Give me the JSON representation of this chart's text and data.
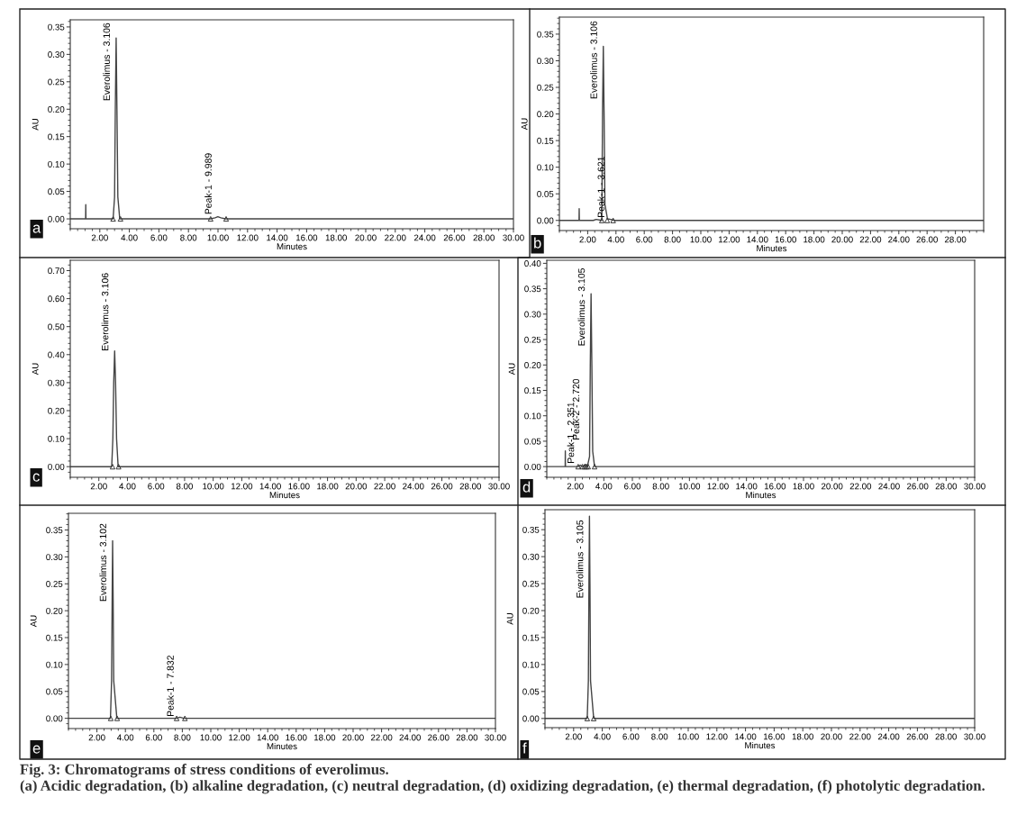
{
  "chart_data": [
    {
      "type": "line",
      "xlabel": "Minutes",
      "ylabel": "AU",
      "xlim": [
        0,
        30
      ],
      "ylim": [
        -0.018,
        0.363
      ],
      "xticks": [
        {
          "value": 2,
          "label": "2.00"
        },
        {
          "value": 4,
          "label": "4.00"
        },
        {
          "value": 6,
          "label": "6.00"
        },
        {
          "value": 8,
          "label": "8.00"
        },
        {
          "value": 10,
          "label": "10.00"
        },
        {
          "value": 12,
          "label": "12.00"
        },
        {
          "value": 14,
          "label": "14.00"
        },
        {
          "value": 16,
          "label": "16.00"
        },
        {
          "value": 18,
          "label": "18.00"
        },
        {
          "value": 20,
          "label": "20.00"
        },
        {
          "value": 22,
          "label": "22.00"
        },
        {
          "value": 24,
          "label": "24.00"
        },
        {
          "value": 26,
          "label": "26.00"
        },
        {
          "value": 28,
          "label": "28.00"
        },
        {
          "value": 30,
          "label": "30.00"
        }
      ],
      "yticks": [
        {
          "value": 0,
          "label": "0.00"
        },
        {
          "value": 0.05,
          "label": "0.05"
        },
        {
          "value": 0.1,
          "label": "0.10"
        },
        {
          "value": 0.15,
          "label": "0.15"
        },
        {
          "value": 0.2,
          "label": "0.20"
        },
        {
          "value": 0.25,
          "label": "0.25"
        },
        {
          "value": 0.3,
          "label": "0.30"
        },
        {
          "value": 0.35,
          "label": "0.35"
        }
      ],
      "series": [
        {
          "color": "#444444",
          "x": [
            0,
            1.04,
            1.05,
            1.06,
            2.9,
            3.0,
            3.05,
            3.106,
            3.16,
            3.22,
            3.35,
            9.5,
            9.8,
            9.989,
            10.2,
            10.5,
            30
          ],
          "values": [
            0,
            0,
            0.026,
            0,
            0,
            0.04,
            0.2,
            0.33,
            0.2,
            0.04,
            0,
            0,
            0.002,
            0.004,
            0.002,
            0,
            0
          ]
        },
        {
          "type": "scatter",
          "marker": "triangle",
          "color": "#333333",
          "x": [
            2.9,
            3.4,
            9.5,
            10.55
          ],
          "values": [
            0,
            0,
            0,
            0
          ]
        }
      ],
      "annotations": [
        "a",
        {
          "text": "Everolimus - 3.106",
          "x": 3.106,
          "y": 0.215
        },
        {
          "text": "Peak-1 - 9.989",
          "x": 9.989,
          "y": 0.008
        }
      ]
    },
    {
      "type": "line",
      "xlabel": "Minutes",
      "ylabel": "AU",
      "xlim": [
        0,
        30
      ],
      "ylim": [
        -0.019,
        0.382
      ],
      "xticks": [
        {
          "value": 2,
          "label": "2.00"
        },
        {
          "value": 4,
          "label": "4.00"
        },
        {
          "value": 6,
          "label": "6.00"
        },
        {
          "value": 8,
          "label": "8.00"
        },
        {
          "value": 10,
          "label": "10.00"
        },
        {
          "value": 12,
          "label": "12.00"
        },
        {
          "value": 14,
          "label": "14.00"
        },
        {
          "value": 16,
          "label": "16.00"
        },
        {
          "value": 18,
          "label": "18.00"
        },
        {
          "value": 20,
          "label": "20.00"
        },
        {
          "value": 22,
          "label": "22.00"
        },
        {
          "value": 24,
          "label": "24.00"
        },
        {
          "value": 26,
          "label": "26.00"
        },
        {
          "value": 28,
          "label": "28.00"
        }
      ],
      "yticks": [
        {
          "value": 0,
          "label": "0.00"
        },
        {
          "value": 0.05,
          "label": "0.05"
        },
        {
          "value": 0.1,
          "label": "0.10"
        },
        {
          "value": 0.15,
          "label": "0.15"
        },
        {
          "value": 0.2,
          "label": "0.20"
        },
        {
          "value": 0.25,
          "label": "0.25"
        },
        {
          "value": 0.3,
          "label": "0.30"
        },
        {
          "value": 0.35,
          "label": "0.35"
        }
      ],
      "series": [
        {
          "color": "#444444",
          "x": [
            0,
            1.39,
            1.4,
            1.41,
            2.4,
            2.6,
            3.0,
            3.05,
            3.106,
            3.16,
            3.22,
            3.4,
            3.621,
            3.9,
            30
          ],
          "values": [
            0,
            0,
            0.022,
            0,
            0,
            0.002,
            0,
            0.2,
            0.327,
            0.2,
            0.03,
            0.003,
            0.002,
            0,
            0
          ]
        },
        {
          "type": "scatter",
          "marker": "triangle",
          "color": "#333333",
          "x": [
            3.0,
            3.38,
            3.8
          ],
          "values": [
            0,
            0,
            0
          ]
        }
      ],
      "annotations": [
        "b",
        {
          "text": "Everolimus - 3.106",
          "x": 3.106,
          "y": 0.228
        },
        {
          "text": "Peak-1 - 3.621",
          "x": 3.621,
          "y": 0.005
        }
      ]
    },
    {
      "type": "line",
      "xlabel": "Minutes",
      "ylabel": "AU",
      "xlim": [
        0,
        30
      ],
      "ylim": [
        -0.038,
        0.737
      ],
      "xticks": [
        {
          "value": 2,
          "label": "2.00"
        },
        {
          "value": 4,
          "label": "4.00"
        },
        {
          "value": 6,
          "label": "6.00"
        },
        {
          "value": 8,
          "label": "8.00"
        },
        {
          "value": 10,
          "label": "10.00"
        },
        {
          "value": 12,
          "label": "12.00"
        },
        {
          "value": 14,
          "label": "14.00"
        },
        {
          "value": 16,
          "label": "16.00"
        },
        {
          "value": 18,
          "label": "18.00"
        },
        {
          "value": 20,
          "label": "20.00"
        },
        {
          "value": 22,
          "label": "22.00"
        },
        {
          "value": 24,
          "label": "24.00"
        },
        {
          "value": 26,
          "label": "26.00"
        },
        {
          "value": 28,
          "label": "28.00"
        },
        {
          "value": 30,
          "label": "30.00"
        }
      ],
      "yticks": [
        {
          "value": 0,
          "label": "0.00"
        },
        {
          "value": 0.1,
          "label": "0.10"
        },
        {
          "value": 0.2,
          "label": "0.20"
        },
        {
          "value": 0.3,
          "label": "0.30"
        },
        {
          "value": 0.4,
          "label": "0.40"
        },
        {
          "value": 0.5,
          "label": "0.50"
        },
        {
          "value": 0.6,
          "label": "0.60"
        },
        {
          "value": 0.7,
          "label": "0.70"
        }
      ],
      "series": [
        {
          "color": "#444444",
          "x": [
            0,
            2.9,
            2.98,
            3.04,
            3.106,
            3.17,
            3.24,
            3.35,
            30
          ],
          "values": [
            0,
            0,
            0.1,
            0.3,
            0.413,
            0.3,
            0.1,
            0,
            0
          ]
        },
        {
          "type": "scatter",
          "marker": "triangle",
          "color": "#333333",
          "x": [
            2.96,
            3.38
          ],
          "values": [
            0,
            0
          ]
        }
      ],
      "annotations": [
        "c",
        {
          "text": "Everolimus - 3.106",
          "x": 3.106,
          "y": 0.413
        }
      ]
    },
    {
      "type": "line",
      "xlabel": "Minutes",
      "ylabel": "AU",
      "xlim": [
        0,
        30
      ],
      "ylim": [
        -0.021,
        0.406
      ],
      "xticks": [
        {
          "value": 2,
          "label": "2.00"
        },
        {
          "value": 4,
          "label": "4.00"
        },
        {
          "value": 6,
          "label": "6.00"
        },
        {
          "value": 8,
          "label": "8.00"
        },
        {
          "value": 10,
          "label": "10.00"
        },
        {
          "value": 12,
          "label": "12.00"
        },
        {
          "value": 14,
          "label": "14.00"
        },
        {
          "value": 16,
          "label": "16.00"
        },
        {
          "value": 18,
          "label": "18.00"
        },
        {
          "value": 20,
          "label": "20.00"
        },
        {
          "value": 22,
          "label": "22.00"
        },
        {
          "value": 24,
          "label": "24.00"
        },
        {
          "value": 26,
          "label": "26.00"
        },
        {
          "value": 28,
          "label": "28.00"
        },
        {
          "value": 30,
          "label": "30.00"
        }
      ],
      "yticks": [
        {
          "value": 0,
          "label": "0.00"
        },
        {
          "value": 0.05,
          "label": "0.05"
        },
        {
          "value": 0.1,
          "label": "0.10"
        },
        {
          "value": 0.15,
          "label": "0.15"
        },
        {
          "value": 0.2,
          "label": "0.20"
        },
        {
          "value": 0.25,
          "label": "0.25"
        },
        {
          "value": 0.3,
          "label": "0.30"
        },
        {
          "value": 0.35,
          "label": "0.35"
        },
        {
          "value": 0.4,
          "label": "0.40"
        }
      ],
      "series": [
        {
          "color": "#444444",
          "x": [
            0,
            1.29,
            1.3,
            1.31,
            2.2,
            2.351,
            2.5,
            2.6,
            2.72,
            2.85,
            3.0,
            3.05,
            3.105,
            3.16,
            3.22,
            3.35,
            30
          ],
          "values": [
            0,
            0,
            0.031,
            0,
            0,
            0.003,
            0,
            0.001,
            0.004,
            0.001,
            0.02,
            0.2,
            0.34,
            0.2,
            0.03,
            0,
            0
          ]
        },
        {
          "type": "scatter",
          "marker": "triangle",
          "color": "#333333",
          "x": [
            2.2,
            2.5,
            2.65,
            2.78,
            2.9,
            3.35
          ],
          "values": [
            0,
            0,
            0,
            0,
            0,
            0
          ]
        }
      ],
      "annotations": [
        "d",
        {
          "text": "Everolimus - 3.105",
          "x": 3.105,
          "y": 0.237
        },
        {
          "text": "Peak-1 - 2.351",
          "x": 2.351,
          "y": 0.006
        },
        {
          "text": "Peak-2 - 2.720",
          "x": 2.72,
          "y": 0.052
        }
      ]
    },
    {
      "type": "line",
      "xlabel": "Minutes",
      "ylabel": "AU",
      "xlim": [
        0,
        30
      ],
      "ylim": [
        -0.019,
        0.381
      ],
      "xticks": [
        {
          "value": 2,
          "label": "2.00"
        },
        {
          "value": 4,
          "label": "4.00"
        },
        {
          "value": 6,
          "label": "6.00"
        },
        {
          "value": 8,
          "label": "8.00"
        },
        {
          "value": 10,
          "label": "10.00"
        },
        {
          "value": 12,
          "label": "12.00"
        },
        {
          "value": 14,
          "label": "14.00"
        },
        {
          "value": 16,
          "label": "16.00"
        },
        {
          "value": 18,
          "label": "18.00"
        },
        {
          "value": 20,
          "label": "20.00"
        },
        {
          "value": 22,
          "label": "22.00"
        },
        {
          "value": 24,
          "label": "24.00"
        },
        {
          "value": 26,
          "label": "26.00"
        },
        {
          "value": 28,
          "label": "28.00"
        },
        {
          "value": 30,
          "label": "30.00"
        }
      ],
      "yticks": [
        {
          "value": 0,
          "label": "0.00"
        },
        {
          "value": 0.05,
          "label": "0.05"
        },
        {
          "value": 0.1,
          "label": "0.10"
        },
        {
          "value": 0.15,
          "label": "0.15"
        },
        {
          "value": 0.2,
          "label": "0.20"
        },
        {
          "value": 0.25,
          "label": "0.25"
        },
        {
          "value": 0.3,
          "label": "0.30"
        },
        {
          "value": 0.35,
          "label": "0.35"
        }
      ],
      "series": [
        {
          "color": "#444444",
          "x": [
            0,
            2.95,
            3.03,
            3.07,
            3.102,
            3.14,
            3.18,
            3.4,
            7.6,
            7.832,
            8.1,
            30
          ],
          "values": [
            0,
            0,
            0.07,
            0.22,
            0.33,
            0.22,
            0.07,
            0,
            0,
            0.002,
            0,
            0
          ]
        },
        {
          "type": "scatter",
          "marker": "triangle",
          "color": "#333333",
          "x": [
            2.97,
            3.42,
            7.6,
            8.18
          ],
          "values": [
            0,
            0,
            0,
            0
          ]
        }
      ],
      "annotations": [
        "e",
        {
          "text": "Everolimus - 3.102",
          "x": 3.102,
          "y": 0.217
        },
        {
          "text": "Peak-1 - 7.832",
          "x": 7.832,
          "y": 0.003
        }
      ]
    },
    {
      "type": "line",
      "xlabel": "Minutes",
      "ylabel": "AU",
      "xlim": [
        0,
        30
      ],
      "ylim": [
        -0.017,
        0.387
      ],
      "xticks": [
        {
          "value": 2,
          "label": "2.00"
        },
        {
          "value": 4,
          "label": "4.00"
        },
        {
          "value": 6,
          "label": "6.00"
        },
        {
          "value": 8,
          "label": "8.00"
        },
        {
          "value": 10,
          "label": "10.00"
        },
        {
          "value": 12,
          "label": "12.00"
        },
        {
          "value": 14,
          "label": "14.00"
        },
        {
          "value": 16,
          "label": "16.00"
        },
        {
          "value": 18,
          "label": "18.00"
        },
        {
          "value": 20,
          "label": "20.00"
        },
        {
          "value": 22,
          "label": "22.00"
        },
        {
          "value": 24,
          "label": "24.00"
        },
        {
          "value": 26,
          "label": "26.00"
        },
        {
          "value": 28,
          "label": "28.00"
        },
        {
          "value": 30,
          "label": "30.00"
        }
      ],
      "yticks": [
        {
          "value": 0,
          "label": "0.00"
        },
        {
          "value": 0.05,
          "label": "0.05"
        },
        {
          "value": 0.1,
          "label": "0.10"
        },
        {
          "value": 0.15,
          "label": "0.15"
        },
        {
          "value": 0.2,
          "label": "0.20"
        },
        {
          "value": 0.25,
          "label": "0.25"
        },
        {
          "value": 0.3,
          "label": "0.30"
        },
        {
          "value": 0.35,
          "label": "0.35"
        }
      ],
      "series": [
        {
          "color": "#444444",
          "x": [
            0,
            2.95,
            3.03,
            3.07,
            3.105,
            3.14,
            3.18,
            3.4,
            30
          ],
          "values": [
            0,
            0,
            0.07,
            0.25,
            0.375,
            0.25,
            0.07,
            0,
            0
          ]
        },
        {
          "type": "scatter",
          "marker": "triangle",
          "color": "#333333",
          "x": [
            2.95,
            3.4
          ],
          "values": [
            0,
            0
          ]
        }
      ],
      "annotations": [
        "f",
        {
          "text": "Everolimus - 3.105",
          "x": 3.105,
          "y": 0.223
        },
        "Fig. 3: Chromatograms of stress conditions of everolimus.",
        "(a) Acidic degradation, (b) alkaline degradation, (c) neutral degradation, (d) oxidizing degradation, (e) thermal degradation, (f) photolytic degradation."
      ]
    }
  ]
}
